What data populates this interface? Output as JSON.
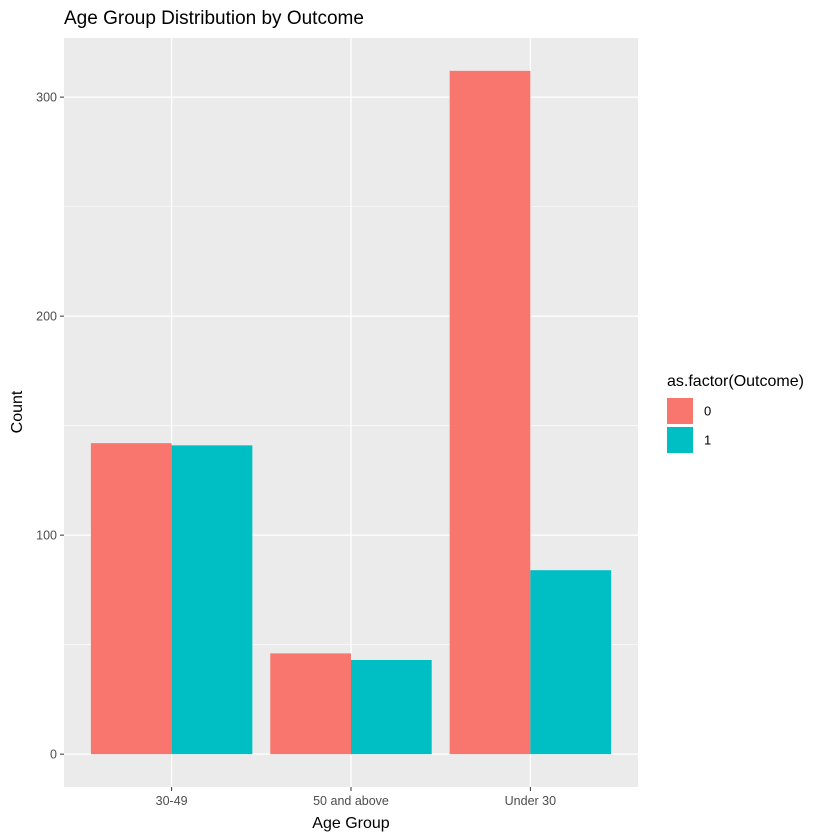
{
  "chart_data": {
    "type": "bar",
    "title": "Age Group Distribution by Outcome",
    "xlabel": "Age Group",
    "ylabel": "Count",
    "categories": [
      "30-49",
      "50 and above",
      "Under 30"
    ],
    "series": [
      {
        "name": "0",
        "values": [
          142,
          46,
          312
        ],
        "color": "#F8766D"
      },
      {
        "name": "1",
        "values": [
          141,
          43,
          84
        ],
        "color": "#00BFC4"
      }
    ],
    "ylim": [
      -15,
      327
    ],
    "yticks": [
      0,
      100,
      200,
      300
    ],
    "ytick_labels": [
      "0",
      "100",
      "200",
      "300"
    ],
    "legend": {
      "title": "as.factor(Outcome)",
      "position": "right"
    },
    "grid": true,
    "panel_background": "#EBEBEB",
    "grid_color": "#FFFFFF"
  }
}
